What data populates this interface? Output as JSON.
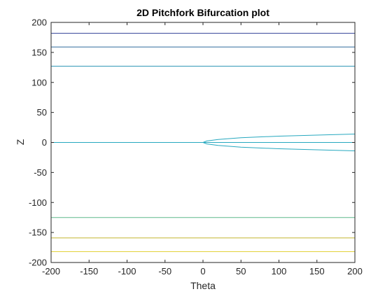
{
  "chart_data": {
    "type": "line",
    "title": "2D Pitchfork Bifurcation plot",
    "xlabel": "Theta",
    "ylabel": "Z",
    "xlim": [
      -200,
      200
    ],
    "ylim": [
      -200,
      200
    ],
    "xticks": [
      -200,
      -150,
      -100,
      -50,
      0,
      50,
      100,
      150,
      200
    ],
    "yticks": [
      -200,
      -150,
      -100,
      -50,
      0,
      50,
      100,
      150,
      200
    ],
    "grid": false,
    "legend": "none",
    "series": [
      {
        "color": "#3b4a9c",
        "x": [
          -200,
          200
        ],
        "y": [
          182,
          182
        ]
      },
      {
        "color": "#2f6a9c",
        "x": [
          -200,
          200
        ],
        "y": [
          159,
          159
        ]
      },
      {
        "color": "#2a93b3",
        "x": [
          -200,
          200
        ],
        "y": [
          127,
          127
        ]
      },
      {
        "color": "#27a8bf",
        "x": [
          -200,
          200
        ],
        "y": [
          0,
          0
        ]
      },
      {
        "color": "#27a8bf",
        "x": [
          0,
          5,
          20,
          50,
          100,
          150,
          200
        ],
        "y": [
          0,
          2.5,
          5,
          7.9,
          10.5,
          12.3,
          14
        ]
      },
      {
        "color": "#27a8bf",
        "x": [
          0,
          5,
          20,
          50,
          100,
          150,
          200
        ],
        "y": [
          0,
          -2.5,
          -5,
          -7.9,
          -10.5,
          -12.3,
          -14
        ]
      },
      {
        "color": "#5fb88a",
        "x": [
          -200,
          200
        ],
        "y": [
          -125,
          -125
        ]
      },
      {
        "color": "#c2b42e",
        "x": [
          -200,
          200
        ],
        "y": [
          -159,
          -159
        ]
      },
      {
        "color": "#e3d23a",
        "x": [
          -200,
          200
        ],
        "y": [
          -182,
          -182
        ]
      }
    ]
  }
}
